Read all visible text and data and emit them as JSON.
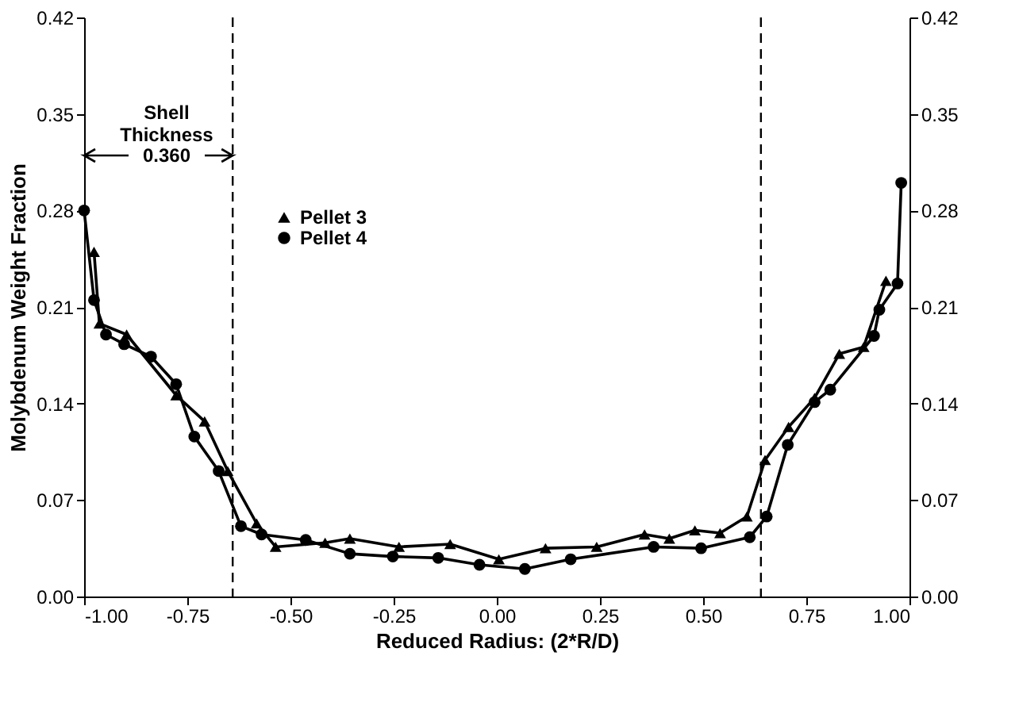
{
  "chart_data": {
    "type": "line",
    "xlabel": "Reduced Radius: (2*R/D)",
    "ylabel": "Molybdenum Weight Fraction",
    "xlim": [
      -1,
      1
    ],
    "ylim": [
      0,
      0.42
    ],
    "y2lim": [
      0,
      0.42
    ],
    "xticks": [
      {
        "value": -1,
        "label": "-1.00"
      },
      {
        "value": -0.75,
        "label": "-0.75"
      },
      {
        "value": -0.5,
        "label": "-0.50"
      },
      {
        "value": -0.25,
        "label": "-0.25"
      },
      {
        "value": 0,
        "label": "0.00"
      },
      {
        "value": 0.25,
        "label": "0.25"
      },
      {
        "value": 0.5,
        "label": "0.50"
      },
      {
        "value": 0.75,
        "label": "0.75"
      },
      {
        "value": 1,
        "label": "1.00"
      }
    ],
    "yticks": [
      {
        "value": 0,
        "label": "0.00"
      },
      0.07,
      0.14,
      0.21,
      0.28,
      0.35,
      0.42
    ],
    "y2ticks": [
      {
        "value": 0,
        "label": "0.00"
      },
      0.07,
      0.14,
      0.21,
      0.28,
      0.35,
      0.42
    ],
    "grid": false,
    "legend": "top left",
    "line_style": "solid",
    "series": [
      {
        "name": "Pellet 3",
        "color": "#000000",
        "marker": "triangle",
        "x": [
          -0.976,
          -0.963,
          -0.897,
          -0.777,
          -0.708,
          -0.652,
          -0.582,
          -0.536,
          -0.416,
          -0.356,
          -0.237,
          -0.113,
          0.005,
          0.118,
          0.242,
          0.358,
          0.418,
          0.48,
          0.541,
          0.606,
          0.65,
          0.707,
          0.77,
          0.83,
          0.889,
          0.943
        ],
        "values": [
          0.25,
          0.198,
          0.19,
          0.146,
          0.127,
          0.091,
          0.053,
          0.036,
          0.039,
          0.042,
          0.036,
          0.038,
          0.027,
          0.035,
          0.036,
          0.045,
          0.042,
          0.048,
          0.046,
          0.058,
          0.099,
          0.123,
          0.144,
          0.176,
          0.181,
          0.229
        ]
      },
      {
        "name": "Pellet 4",
        "color": "#000000",
        "marker": "circle",
        "x": [
          -1.0,
          -0.976,
          -0.947,
          -0.903,
          -0.838,
          -0.777,
          -0.733,
          -0.674,
          -0.62,
          -0.57,
          -0.463,
          -0.356,
          -0.252,
          -0.142,
          -0.042,
          0.068,
          0.179,
          0.38,
          0.495,
          0.613,
          0.654,
          0.705,
          0.77,
          0.808,
          0.914,
          0.927,
          0.971,
          0.98
        ],
        "values": [
          0.28,
          0.215,
          0.19,
          0.183,
          0.174,
          0.154,
          0.116,
          0.091,
          0.051,
          0.045,
          0.041,
          0.031,
          0.029,
          0.028,
          0.023,
          0.02,
          0.027,
          0.036,
          0.035,
          0.043,
          0.058,
          0.11,
          0.141,
          0.15,
          0.189,
          0.208,
          0.227,
          0.3
        ]
      }
    ],
    "ref_lines": [
      {
        "axis": "x",
        "value": -0.64,
        "line_style": "dashed",
        "color": "#000000"
      },
      {
        "axis": "x",
        "value": 0.64,
        "line_style": "dashed",
        "color": "#000000"
      }
    ],
    "annotations": [
      "Shell Thickness",
      "0.360"
    ]
  }
}
